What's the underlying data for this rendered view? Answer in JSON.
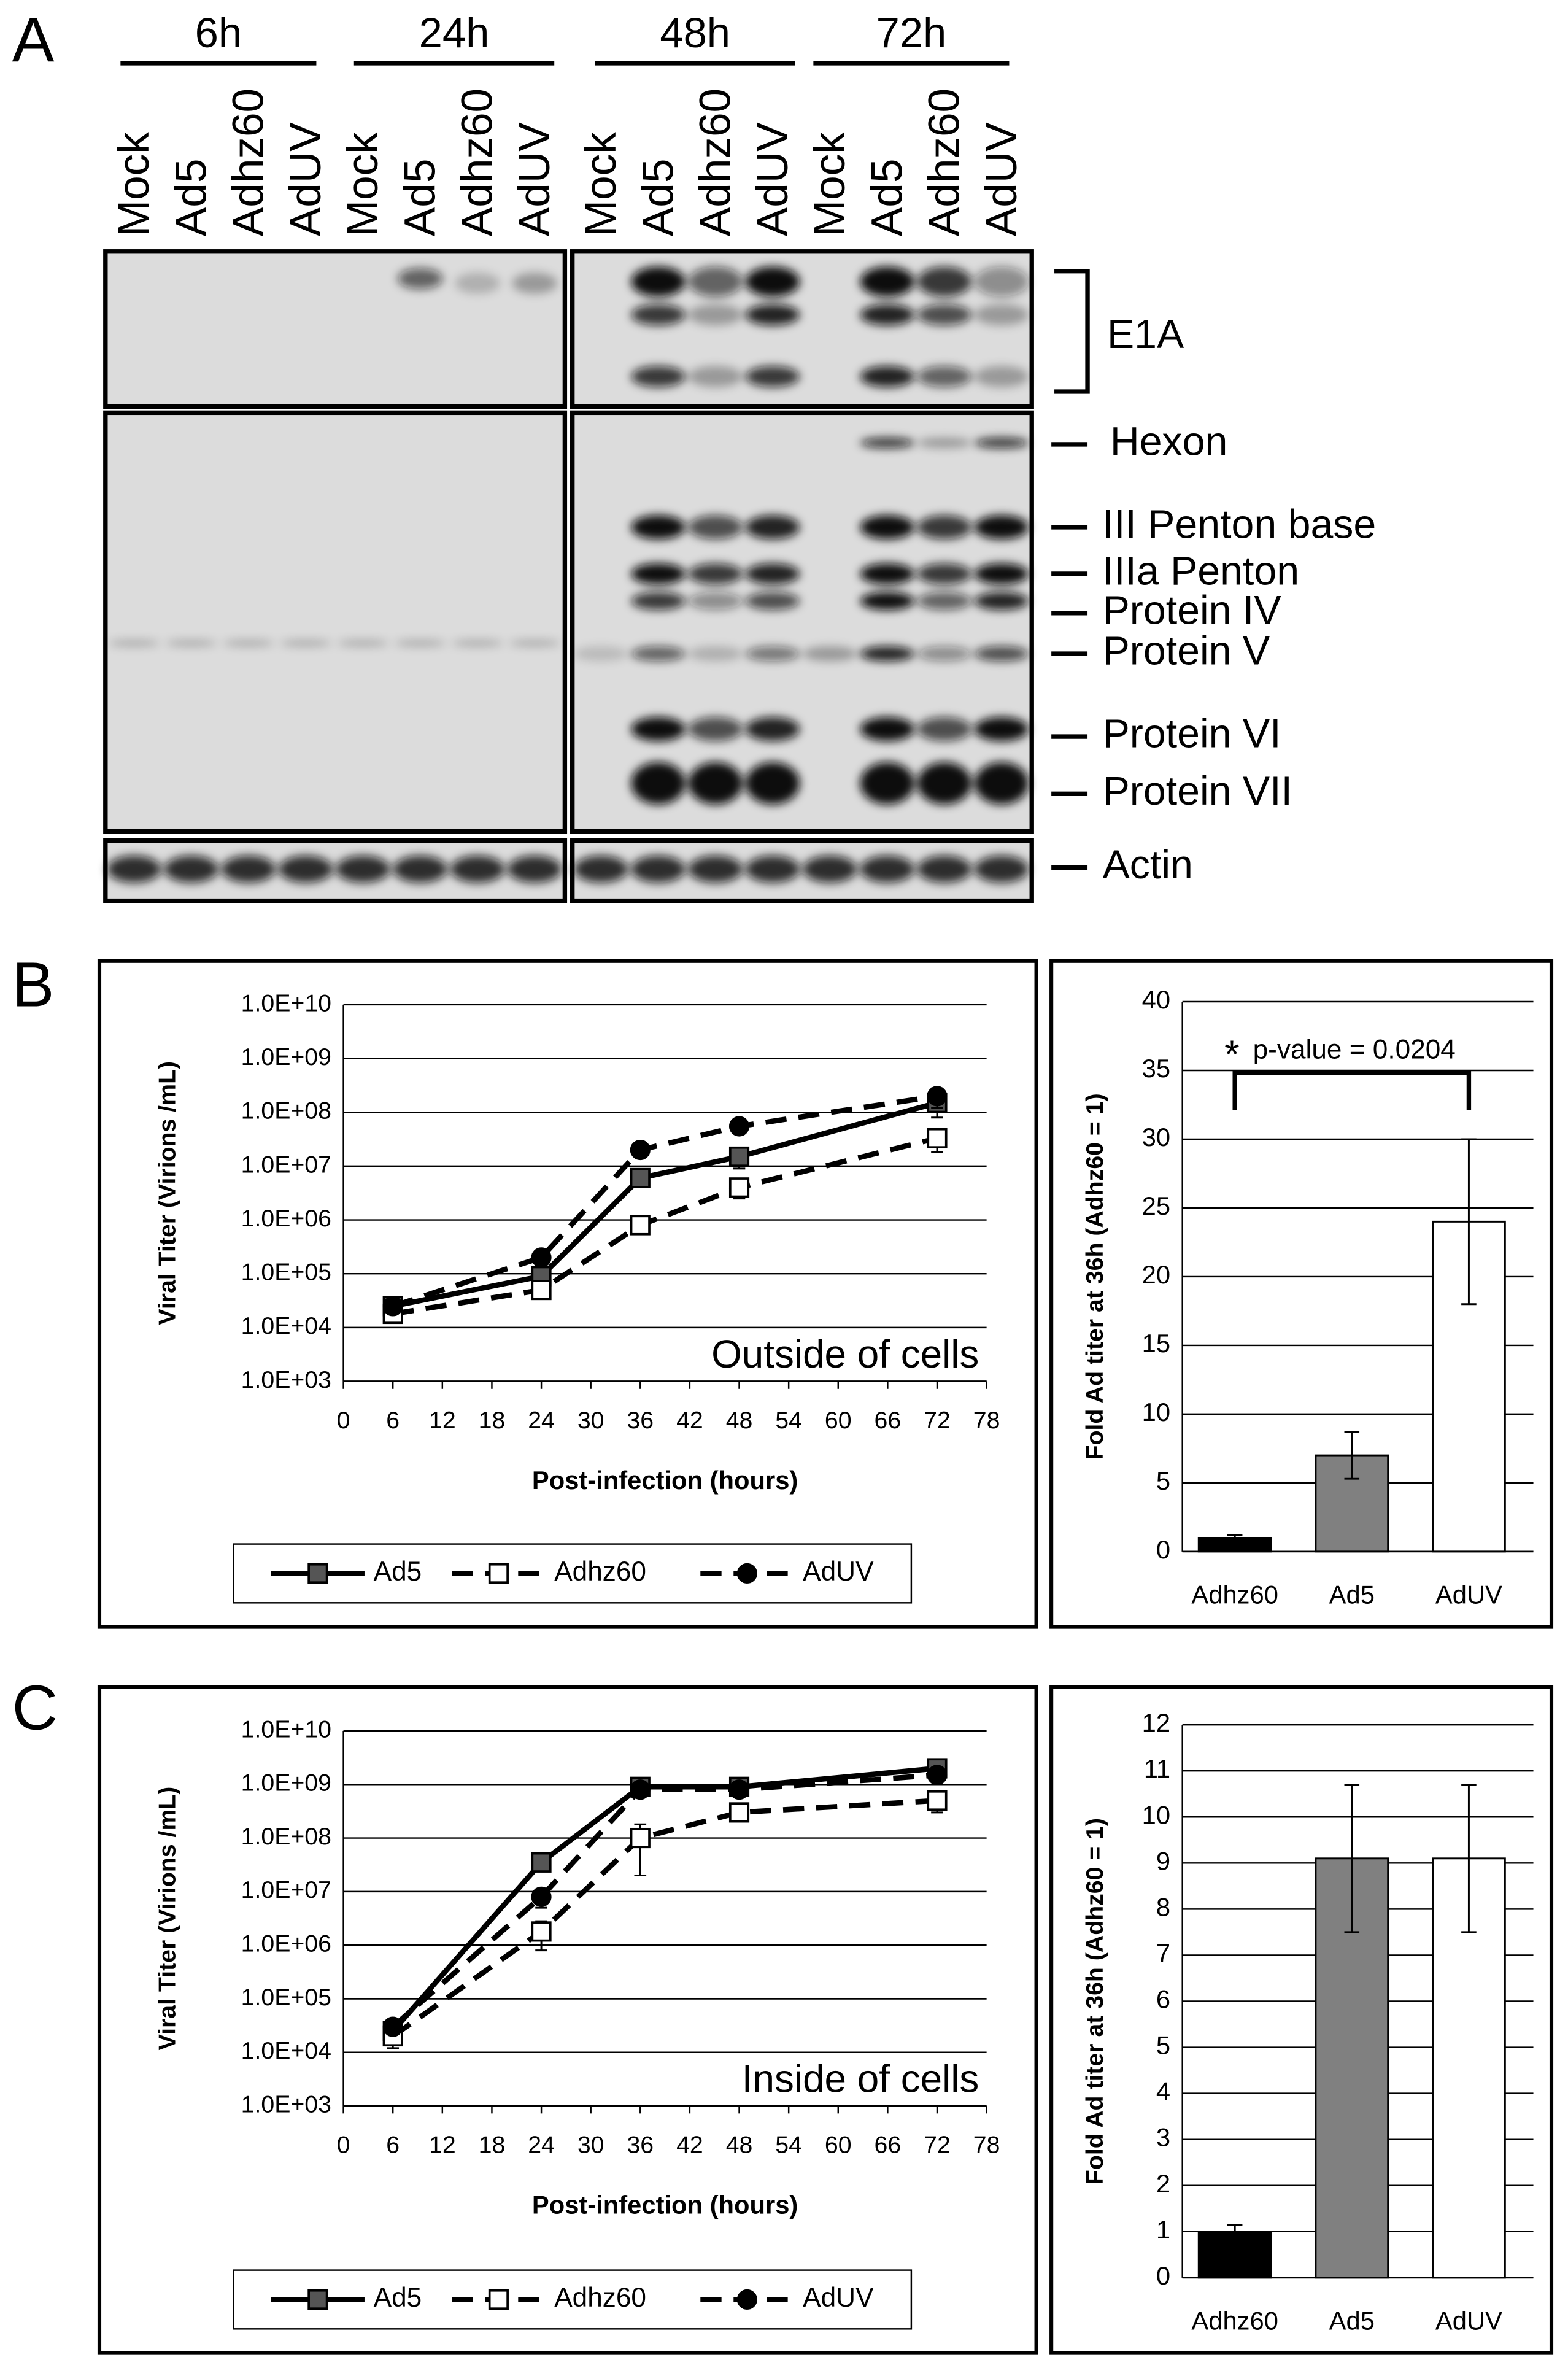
{
  "panel_labels": [
    "A",
    "B",
    "C"
  ],
  "blot": {
    "groups": [
      {
        "time": "6h",
        "lanes": [
          "Mock",
          "Ad5",
          "Adhz60",
          "AdUV"
        ]
      },
      {
        "time": "24h",
        "lanes": [
          "Mock",
          "Ad5",
          "Adhz60",
          "AdUV"
        ]
      },
      {
        "time": "48h",
        "lanes": [
          "Mock",
          "Ad5",
          "Adhz60",
          "AdUV"
        ]
      },
      {
        "time": "72h",
        "lanes": [
          "Mock",
          "Ad5",
          "Adhz60",
          "AdUV"
        ]
      }
    ],
    "bands": [
      "E1A",
      "Hexon",
      "III Penton base",
      "IIIa Penton",
      "Protein IV",
      "Protein V",
      "Protein VI",
      "Protein VII",
      "Actin"
    ]
  },
  "chart_data": [
    {
      "type": "line",
      "log_y": true,
      "grid": true,
      "legend": "bottom",
      "xlabel": "Post-infection (hours)",
      "ylabel": "Viral Titer (Virions /mL)",
      "annotation": "Outside of cells",
      "xlim": [
        0,
        78
      ],
      "xticks": [
        0,
        6,
        12,
        18,
        24,
        30,
        36,
        42,
        48,
        54,
        60,
        66,
        72,
        78
      ],
      "ylim": [
        1000,
        10000000000
      ],
      "yticks": [
        {
          "value": 1000,
          "label": "1.0E+03"
        },
        {
          "value": 10000,
          "label": "1.0E+04"
        },
        {
          "value": 100000,
          "label": "1.0E+05"
        },
        {
          "value": 1000000,
          "label": "1.0E+06"
        },
        {
          "value": 10000000,
          "label": "1.0E+07"
        },
        {
          "value": 100000000,
          "label": "1.0E+08"
        },
        {
          "value": 1000000000,
          "label": "1.0E+09"
        },
        {
          "value": 10000000000,
          "label": "1.0E+10"
        }
      ],
      "x": [
        6,
        24,
        36,
        48,
        72
      ],
      "series": [
        {
          "name": "Ad5",
          "color": "#000000",
          "marker_fill": "#555555",
          "marker": "square",
          "line_style": "solid",
          "values": [
            25000,
            90000,
            6000000,
            15000000,
            150000000
          ],
          "errors": [
            5000,
            10000,
            1000000,
            6000000,
            70000000
          ]
        },
        {
          "name": "Adhz60",
          "color": "#000000",
          "marker_fill": "#ffffff",
          "marker": "square",
          "line_style": "dashed",
          "values": [
            18000,
            50000,
            800000,
            4000000,
            33000000
          ],
          "errors": [
            5000,
            5000,
            100000,
            1500000,
            15000000
          ]
        },
        {
          "name": "AdUV",
          "color": "#000000",
          "marker_fill": "#000000",
          "marker": "circle",
          "line_style": "dashed",
          "values": [
            25000,
            200000,
            20000000,
            55000000,
            200000000
          ],
          "errors": [
            3000,
            20000,
            2000000,
            5000000,
            80000000
          ]
        }
      ]
    },
    {
      "type": "bar",
      "grid": true,
      "ylabel": "Fold Ad titer at 36h (Adhz60 = 1)",
      "categories": [
        "Adhz60",
        "Ad5",
        "AdUV"
      ],
      "values": [
        1,
        7,
        24
      ],
      "errors": [
        0.2,
        1.7,
        6
      ],
      "colors": [
        "#000000",
        "#808080",
        "#ffffff"
      ],
      "ylim": [
        0,
        40
      ],
      "yticks": [
        0,
        5,
        10,
        15,
        20,
        25,
        30,
        35,
        40
      ],
      "significance": "*",
      "annotation": "p-value = 0.0204"
    },
    {
      "type": "line",
      "log_y": true,
      "grid": true,
      "legend": "bottom",
      "xlabel": "Post-infection (hours)",
      "ylabel": "Viral Titer (Virions /mL)",
      "annotation": "Inside of cells",
      "xlim": [
        0,
        78
      ],
      "xticks": [
        0,
        6,
        12,
        18,
        24,
        30,
        36,
        42,
        48,
        54,
        60,
        66,
        72,
        78
      ],
      "ylim": [
        1000,
        10000000000
      ],
      "yticks": [
        {
          "value": 1000,
          "label": "1.0E+03"
        },
        {
          "value": 10000,
          "label": "1.0E+04"
        },
        {
          "value": 100000,
          "label": "1.0E+05"
        },
        {
          "value": 1000000,
          "label": "1.0E+06"
        },
        {
          "value": 10000000,
          "label": "1.0E+07"
        },
        {
          "value": 100000000,
          "label": "1.0E+08"
        },
        {
          "value": 1000000000,
          "label": "1.0E+09"
        },
        {
          "value": 10000000000,
          "label": "1.0E+10"
        }
      ],
      "x": [
        6,
        24,
        36,
        48,
        72
      ],
      "series": [
        {
          "name": "Ad5",
          "color": "#000000",
          "marker_fill": "#555555",
          "marker": "square",
          "line_style": "solid",
          "values": [
            25000,
            35000000,
            900000000,
            900000000,
            2000000000
          ],
          "errors": [
            5000,
            5000000,
            100000000,
            100000000,
            300000000
          ]
        },
        {
          "name": "Adhz60",
          "color": "#000000",
          "marker_fill": "#ffffff",
          "marker": "square",
          "line_style": "dashed",
          "values": [
            20000,
            1800000,
            100000000,
            300000000,
            500000000
          ],
          "errors": [
            8000,
            1000000,
            80000000,
            50000000,
            200000000
          ]
        },
        {
          "name": "AdUV",
          "color": "#000000",
          "marker_fill": "#000000",
          "marker": "circle",
          "line_style": "dashed",
          "values": [
            30000,
            8000000,
            800000000,
            800000000,
            1500000000
          ],
          "errors": [
            5000,
            3000000,
            100000000,
            100000000,
            300000000
          ]
        }
      ]
    },
    {
      "type": "bar",
      "grid": true,
      "ylabel": "Fold Ad titer at 36h (Adhz60 = 1)",
      "categories": [
        "Adhz60",
        "Ad5",
        "AdUV"
      ],
      "values": [
        1,
        9.1,
        9.1
      ],
      "errors": [
        0.15,
        1.6,
        1.6
      ],
      "colors": [
        "#000000",
        "#808080",
        "#ffffff"
      ],
      "ylim": [
        0,
        12
      ],
      "yticks": [
        0,
        1,
        2,
        3,
        4,
        5,
        6,
        7,
        8,
        9,
        10,
        11,
        12
      ]
    }
  ]
}
